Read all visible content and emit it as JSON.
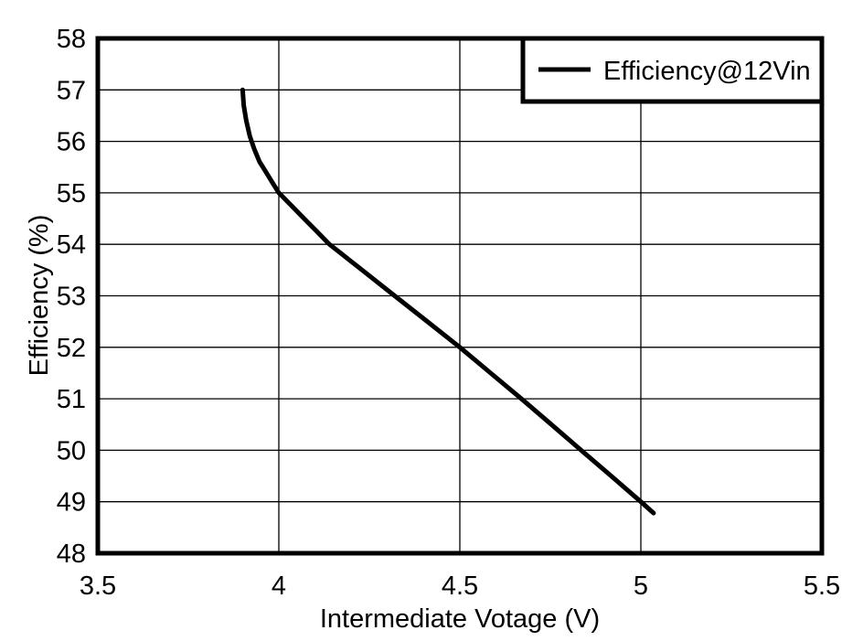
{
  "page": {
    "background": "#ffffff",
    "foreground": "#000000"
  },
  "chart_data": {
    "type": "line",
    "title": "",
    "xlabel": "Intermediate Votage (V)",
    "ylabel": "Efficiency (%)",
    "xlim": [
      3.5,
      5.5
    ],
    "ylim": [
      48,
      58
    ],
    "xticks": [
      3.5,
      4,
      4.5,
      5,
      5.5
    ],
    "xtick_labels": [
      "3.5",
      "4",
      "4.5",
      "5",
      "5.5"
    ],
    "yticks": [
      48,
      49,
      50,
      51,
      52,
      53,
      54,
      55,
      56,
      57,
      58
    ],
    "ytick_labels": [
      "48",
      "49",
      "50",
      "51",
      "52",
      "53",
      "54",
      "55",
      "56",
      "57",
      "58"
    ],
    "grid": true,
    "grid_color": "#000000",
    "axis_color": "#000000",
    "plot_background": "#ffffff",
    "legend": {
      "position": "top-right",
      "border_color": "#000000",
      "background": "#ffffff",
      "entries": [
        {
          "label": "Efficiency@12Vin",
          "color": "#000000"
        }
      ]
    },
    "series": [
      {
        "name": "Efficiency@12Vin",
        "color": "#000000",
        "line_width": 5,
        "points": [
          [
            3.9,
            57.0
          ],
          [
            3.903,
            56.7
          ],
          [
            3.91,
            56.4
          ],
          [
            3.92,
            56.1
          ],
          [
            3.932,
            55.85
          ],
          [
            3.947,
            55.6
          ],
          [
            3.965,
            55.4
          ],
          [
            3.982,
            55.2
          ],
          [
            4.0,
            55.0
          ],
          [
            4.035,
            54.75
          ],
          [
            4.07,
            54.5
          ],
          [
            4.105,
            54.25
          ],
          [
            4.14,
            54.0
          ],
          [
            4.23,
            53.5
          ],
          [
            4.32,
            53.0
          ],
          [
            4.41,
            52.5
          ],
          [
            4.5,
            52.0
          ],
          [
            4.585,
            51.5
          ],
          [
            4.67,
            51.0
          ],
          [
            4.753,
            50.5
          ],
          [
            4.835,
            50.0
          ],
          [
            4.918,
            49.5
          ],
          [
            5.0,
            49.0
          ],
          [
            5.035,
            48.78
          ]
        ]
      }
    ]
  }
}
